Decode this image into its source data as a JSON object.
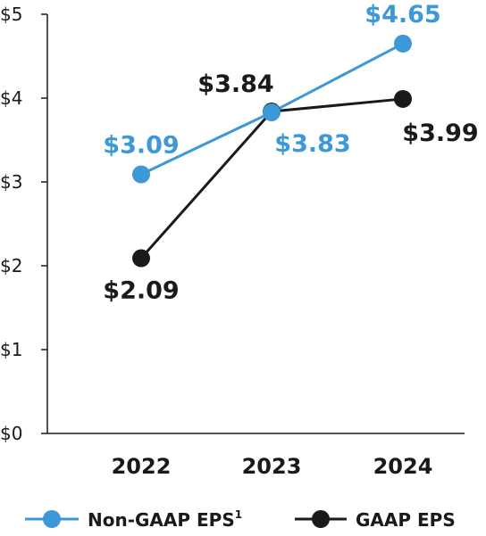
{
  "chart_data": {
    "type": "line",
    "categories": [
      "2022",
      "2023",
      "2024"
    ],
    "ylim": [
      0,
      5
    ],
    "yticks": [
      0,
      1,
      2,
      3,
      4,
      5
    ],
    "ytick_labels": [
      "$0",
      "$1",
      "$2",
      "$3",
      "$4",
      "$5"
    ],
    "grid": false,
    "legend_position": "bottom",
    "series": [
      {
        "key": "nongaap",
        "name": "Non-GAAP EPS",
        "superscript": "1",
        "color": "#3c98d6",
        "values": [
          3.09,
          3.83,
          4.65
        ],
        "labels": [
          "$3.09",
          "$3.83",
          "$4.65"
        ]
      },
      {
        "key": "gaap",
        "name": "GAAP EPS",
        "color": "#1a1a1a",
        "values": [
          2.09,
          3.84,
          3.99
        ],
        "labels": [
          "$2.09",
          "$3.84",
          "$3.99"
        ]
      }
    ]
  }
}
